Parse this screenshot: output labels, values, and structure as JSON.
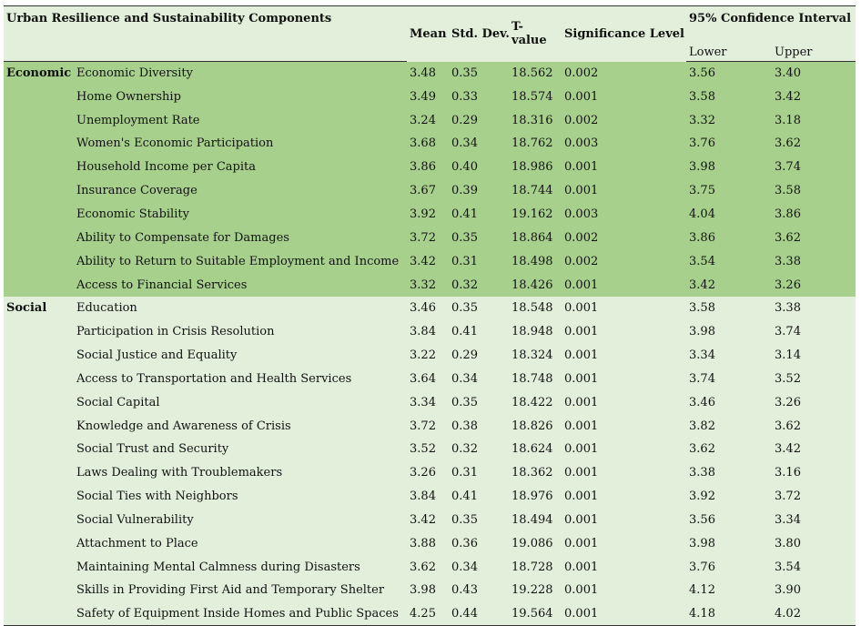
{
  "table": {
    "header": {
      "component": "Urban Resilience and Sustainability Components",
      "mean": "Mean",
      "std": "Std. Dev.",
      "t_line1": "T-",
      "t_line2": "value",
      "sig": "Significance Level",
      "ci": "95% Confidence Interval",
      "lower": "Lower",
      "upper": "Upper"
    },
    "groups": [
      {
        "name": "Economic",
        "rows": [
          [
            "Economic Diversity",
            "3.48",
            "0.35",
            "18.562",
            "0.002",
            "3.56",
            "3.40"
          ],
          [
            "Home Ownership",
            "3.49",
            "0.33",
            "18.574",
            "0.001",
            "3.58",
            "3.42"
          ],
          [
            "Unemployment Rate",
            "3.24",
            "0.29",
            "18.316",
            "0.002",
            "3.32",
            "3.18"
          ],
          [
            "Women's Economic Participation",
            "3.68",
            "0.34",
            "18.762",
            "0.003",
            "3.76",
            "3.62"
          ],
          [
            "Household Income per Capita",
            "3.86",
            "0.40",
            "18.986",
            "0.001",
            "3.98",
            "3.74"
          ],
          [
            "Insurance Coverage",
            "3.67",
            "0.39",
            "18.744",
            "0.001",
            "3.75",
            "3.58"
          ],
          [
            "Economic Stability",
            "3.92",
            "0.41",
            "19.162",
            "0.003",
            "4.04",
            "3.86"
          ],
          [
            "Ability to Compensate for Damages",
            "3.72",
            "0.35",
            "18.864",
            "0.002",
            "3.86",
            "3.62"
          ],
          [
            "Ability to Return to Suitable Employment and Income",
            "3.42",
            "0.31",
            "18.498",
            "0.002",
            "3.54",
            "3.38"
          ],
          [
            "Access to Financial Services",
            "3.32",
            "0.32",
            "18.426",
            "0.001",
            "3.42",
            "3.26"
          ]
        ]
      },
      {
        "name": "Social",
        "rows": [
          [
            "Education",
            "3.46",
            "0.35",
            "18.548",
            "0.001",
            "3.58",
            "3.38"
          ],
          [
            "Participation in Crisis Resolution",
            "3.84",
            "0.41",
            "18.948",
            "0.001",
            "3.98",
            "3.74"
          ],
          [
            "Social Justice and Equality",
            "3.22",
            "0.29",
            "18.324",
            "0.001",
            "3.34",
            "3.14"
          ],
          [
            "Access to Transportation and Health Services",
            "3.64",
            "0.34",
            "18.748",
            "0.001",
            "3.74",
            "3.52"
          ],
          [
            "Social Capital",
            "3.34",
            "0.35",
            "18.422",
            "0.001",
            "3.46",
            "3.26"
          ],
          [
            "Knowledge and Awareness of Crisis",
            "3.72",
            "0.38",
            "18.826",
            "0.001",
            "3.82",
            "3.62"
          ],
          [
            "Social Trust and Security",
            "3.52",
            "0.32",
            "18.624",
            "0.001",
            "3.62",
            "3.42"
          ],
          [
            "Laws Dealing with Troublemakers",
            "3.26",
            "0.31",
            "18.362",
            "0.001",
            "3.38",
            "3.16"
          ],
          [
            "Social Ties with Neighbors",
            "3.84",
            "0.41",
            "18.976",
            "0.001",
            "3.92",
            "3.72"
          ],
          [
            "Social Vulnerability",
            "3.42",
            "0.35",
            "18.494",
            "0.001",
            "3.56",
            "3.34"
          ],
          [
            "Attachment to Place",
            "3.88",
            "0.36",
            "19.086",
            "0.001",
            "3.98",
            "3.80"
          ],
          [
            "Maintaining Mental Calmness during Disasters",
            "3.62",
            "0.34",
            "18.728",
            "0.001",
            "3.76",
            "3.54"
          ],
          [
            "Skills in Providing First Aid and Temporary Shelter",
            "3.98",
            "0.43",
            "19.228",
            "0.001",
            "4.12",
            "3.90"
          ],
          [
            "Safety of Equipment Inside Homes and Public Spaces",
            "4.25",
            "0.44",
            "19.564",
            "0.001",
            "4.18",
            "4.02"
          ]
        ]
      }
    ]
  }
}
